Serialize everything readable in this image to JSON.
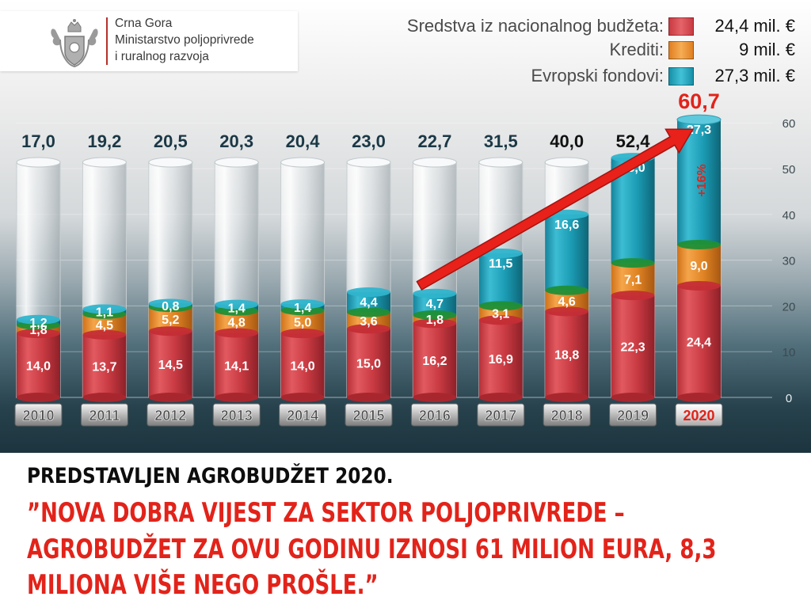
{
  "org": {
    "line1": "Crna Gora",
    "line2": "Ministarstvo poljoprivrede",
    "line3": "i ruralnog razvoja"
  },
  "legend": [
    {
      "label": "Sredstva iz nacionalnog budžeta:",
      "value": "24,4 mil. €",
      "color": "#d9444b"
    },
    {
      "label": "Krediti:",
      "value": "9 mil. €",
      "color": "#ea8a2a"
    },
    {
      "label": "Evropski fondovi:",
      "value": "27,3 mil. €",
      "color": "#1f9fb8"
    }
  ],
  "chart_data": {
    "type": "bar",
    "stacked": true,
    "categories": [
      "2010",
      "2011",
      "2012",
      "2013",
      "2014",
      "2015",
      "2016",
      "2017",
      "2018",
      "2019",
      "2020"
    ],
    "series": [
      {
        "name": "Sredstva iz nacionalnog budžeta",
        "color": "#d9444b",
        "values": [
          14.0,
          13.7,
          14.5,
          14.1,
          14.0,
          15.0,
          16.2,
          16.9,
          18.8,
          22.3,
          24.4
        ],
        "labels": [
          "14,0",
          "13,7",
          "14,5",
          "14,1",
          "14,0",
          "15,0",
          "16,2",
          "16,9",
          "18,8",
          "22,3",
          "24,4"
        ]
      },
      {
        "name": "Krediti",
        "color": "#ea8a2a",
        "values": [
          1.8,
          4.5,
          5.2,
          4.8,
          5.0,
          3.6,
          1.8,
          3.1,
          4.6,
          7.1,
          9.0
        ],
        "labels": [
          "1,8",
          "4,5",
          "5,2",
          "4,8",
          "5,0",
          "3,6",
          "1,8",
          "3,1",
          "4,6",
          "7,1",
          "9,0"
        ]
      },
      {
        "name": "Evropski fondovi",
        "color": "#1f9fb8",
        "values": [
          1.2,
          1.1,
          0.8,
          1.4,
          1.4,
          4.4,
          4.7,
          11.5,
          16.6,
          23.0,
          27.3
        ],
        "labels": [
          "1,2",
          "1,1",
          "0,8",
          "1,4",
          "1,4",
          "4,4",
          "4,7",
          "11,5",
          "16,6",
          "23,0",
          "27,3"
        ]
      }
    ],
    "totals": [
      17.0,
      19.2,
      20.5,
      20.3,
      20.4,
      23.0,
      22.7,
      31.5,
      40.0,
      52.4,
      60.7
    ],
    "total_labels": [
      "17,0",
      "19,2",
      "20,5",
      "20,3",
      "20,4",
      "23,0",
      "22,7",
      "31,5",
      "40,0",
      "52,4",
      "60,7"
    ],
    "yticks": [
      0,
      10,
      20,
      30,
      40,
      50,
      60
    ],
    "ylim": [
      0,
      62
    ],
    "highlight_category": "2020",
    "growth_annotation": "+16%",
    "trend_arrow": {
      "from_category": "2016",
      "to_category": "2020"
    },
    "grid": true,
    "legend_position": "top-right"
  },
  "headline": {
    "top": "PREDSTAVLJEN AGROBUDŽET 2020.",
    "quote_line1": "”NOVA DOBRA VIJEST ZA SEKTOR POLJOPRIVREDE –",
    "quote_line2": "AGROBUDŽET ZA OVU GODINU IZNOSI 61 MILION EURA, 8,3",
    "quote_line3": "MILIONA VIŠE NEGO PROŠLE.”"
  }
}
